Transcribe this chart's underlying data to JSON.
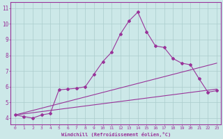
{
  "background_color": "#cce8e8",
  "line_color": "#993399",
  "grid_color": "#aacccc",
  "xlabel": "Windchill (Refroidissement éolien,°C)",
  "ylabel_ticks": [
    4,
    5,
    6,
    7,
    8,
    9,
    10,
    11
  ],
  "xticks": [
    0,
    1,
    2,
    3,
    4,
    5,
    6,
    7,
    8,
    9,
    10,
    11,
    12,
    13,
    14,
    15,
    16,
    17,
    18,
    19,
    20,
    21,
    22,
    23
  ],
  "xlim": [
    -0.5,
    23.5
  ],
  "ylim": [
    3.6,
    11.4
  ],
  "line1_x": [
    0,
    1,
    2,
    3,
    4,
    5,
    6,
    7,
    8,
    9,
    10,
    11,
    12,
    13,
    14,
    15,
    16,
    17,
    18,
    19,
    20,
    21,
    22,
    23
  ],
  "line1_y": [
    4.2,
    4.1,
    4.0,
    4.2,
    4.3,
    5.8,
    5.85,
    5.9,
    6.0,
    6.8,
    7.6,
    8.2,
    9.35,
    10.2,
    10.75,
    9.5,
    8.6,
    8.5,
    7.8,
    7.5,
    7.4,
    6.5,
    5.65,
    5.75
  ],
  "line2_x": [
    0,
    23
  ],
  "line2_y": [
    4.2,
    7.5
  ],
  "line3_x": [
    0,
    23
  ],
  "line3_y": [
    4.2,
    5.85
  ]
}
